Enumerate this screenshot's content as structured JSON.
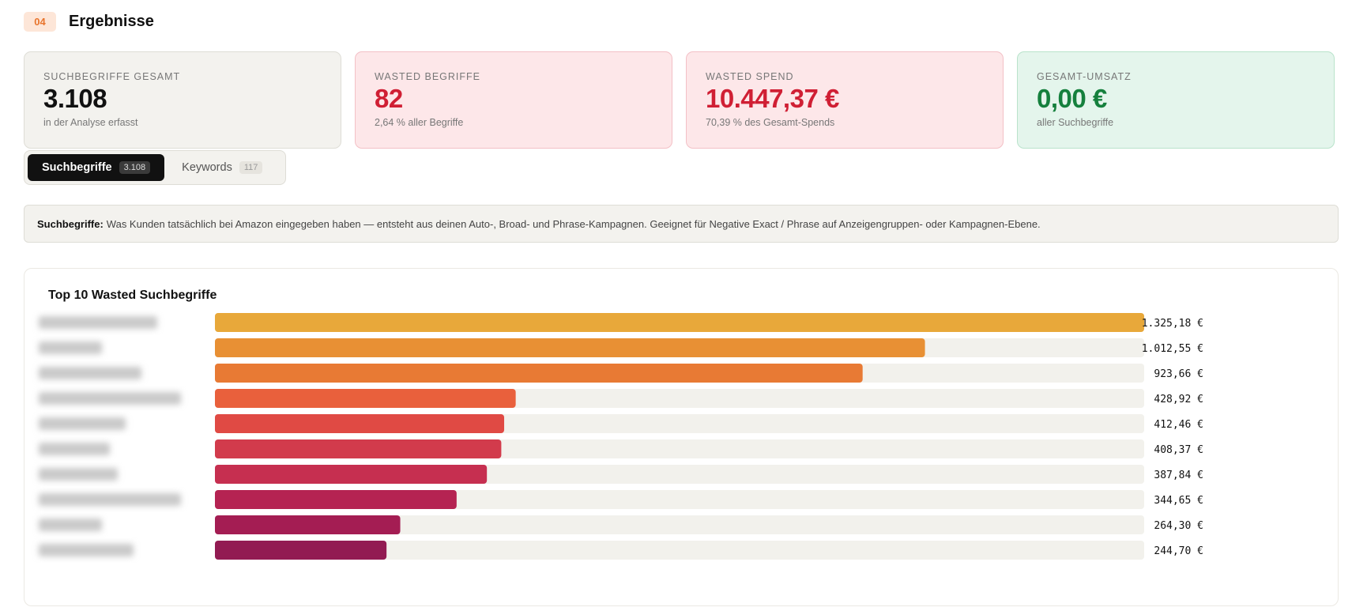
{
  "section": {
    "step": "04",
    "title": "Ergebnisse"
  },
  "stats": [
    {
      "label": "Suchbegriffe gesamt",
      "value": "3.108",
      "sub": "in der Analyse erfasst"
    },
    {
      "label": "Wasted Begriffe",
      "value": "82",
      "sub": "2,64 % aller Begriffe"
    },
    {
      "label": "Wasted Spend",
      "value": "10.447,37 €",
      "sub": "70,39 % des Gesamt-Spends"
    },
    {
      "label": "Gesamt-Umsatz",
      "value": "0,00 €",
      "sub": "aller Suchbegriffe"
    }
  ],
  "tabs": [
    {
      "label": "Suchbegriffe",
      "count": "3.108",
      "active": true
    },
    {
      "label": "Keywords",
      "count": "117",
      "active": false
    }
  ],
  "info": {
    "term": "Suchbegriffe:",
    "text": "Was Kunden tatsächlich bei Amazon eingegeben haben — entsteht aus deinen Auto-, Broad- und Phrase-Kampagnen. Geeignet für Negative Exact / Phrase auf Anzeigengruppen- oder Kampagnen-Ebene."
  },
  "chart_data": {
    "type": "bar",
    "orientation": "horizontal",
    "title": "Top 10 Wasted Suchbegriffe",
    "categories_blurred": true,
    "values": [
      1325.18,
      1012.55,
      923.66,
      428.92,
      412.46,
      408.37,
      387.84,
      344.65,
      264.3,
      244.7
    ],
    "value_labels": [
      "1.325,18 €",
      "1.012,55 €",
      "923,66 €",
      "428,92 €",
      "412,46 €",
      "408,37 €",
      "387,84 €",
      "344,65 €",
      "264,30 €",
      "244,70 €"
    ],
    "colors": [
      "#e8a83a",
      "#e89034",
      "#e87a34",
      "#e9603c",
      "#e04a44",
      "#d23b4c",
      "#c62f50",
      "#b52352",
      "#a41d53",
      "#921b52"
    ],
    "track_color": "#f2f1ec",
    "xlim": [
      0,
      1325.18
    ],
    "grid": false,
    "legend": "none"
  }
}
